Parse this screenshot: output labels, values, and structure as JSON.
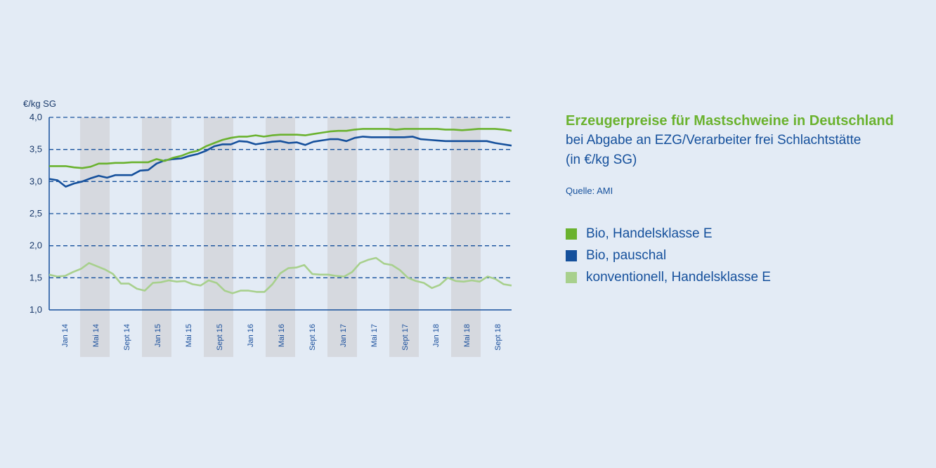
{
  "chart_data": {
    "type": "line",
    "title": "Erzeugerpreise für Mastschweine in Deutschland",
    "subtitle_line1": "bei Abgabe an EZG/Verarbeiter frei Schlachtstätte",
    "subtitle_line2": "(in €/kg SG)",
    "source": "Quelle: AMI",
    "ylabel": "€/kg SG",
    "ylim": [
      1.0,
      4.0
    ],
    "yticks": [
      "4,0",
      "3,5",
      "3,0",
      "2,5",
      "2,0",
      "1,5",
      "1,0"
    ],
    "grid": "dashed-horizontal",
    "legend_position": "right",
    "x_tick_labels": [
      "Jan 14",
      "Mai 14",
      "Sept 14",
      "Jan 15",
      "Mai 15",
      "Sept 15",
      "Jan 16",
      "Mai 16",
      "Sept 16",
      "Jan 17",
      "Mai 17",
      "Sept 17",
      "Jan 18",
      "Mai 18",
      "Sept 18"
    ],
    "x_start": "2013-12",
    "series": [
      {
        "name": "Bio, Handelsklasse E",
        "color": "#6ab22e",
        "values": [
          3.24,
          3.24,
          3.24,
          3.22,
          3.21,
          3.23,
          3.28,
          3.28,
          3.29,
          3.29,
          3.3,
          3.3,
          3.3,
          3.35,
          3.32,
          3.37,
          3.4,
          3.45,
          3.48,
          3.55,
          3.6,
          3.65,
          3.68,
          3.7,
          3.7,
          3.72,
          3.7,
          3.72,
          3.73,
          3.73,
          3.73,
          3.72,
          3.74,
          3.76,
          3.78,
          3.79,
          3.79,
          3.81,
          3.82,
          3.82,
          3.82,
          3.82,
          3.81,
          3.82,
          3.82,
          3.82,
          3.82,
          3.82,
          3.81,
          3.81,
          3.8,
          3.81,
          3.82,
          3.82,
          3.82,
          3.81,
          3.79
        ]
      },
      {
        "name": "Bio, pauschal",
        "color": "#15509c",
        "values": [
          3.04,
          3.02,
          2.92,
          2.97,
          3.0,
          3.05,
          3.09,
          3.06,
          3.1,
          3.1,
          3.1,
          3.17,
          3.18,
          3.28,
          3.33,
          3.35,
          3.36,
          3.4,
          3.43,
          3.48,
          3.55,
          3.58,
          3.58,
          3.63,
          3.62,
          3.58,
          3.6,
          3.62,
          3.63,
          3.6,
          3.61,
          3.57,
          3.62,
          3.64,
          3.66,
          3.66,
          3.63,
          3.68,
          3.7,
          3.69,
          3.69,
          3.69,
          3.69,
          3.69,
          3.7,
          3.66,
          3.65,
          3.64,
          3.63,
          3.63,
          3.63,
          3.63,
          3.63,
          3.63,
          3.6,
          3.58,
          3.56
        ]
      },
      {
        "name": "konventionell, Handelsklasse E",
        "color": "#a8d08d",
        "values": [
          1.55,
          1.52,
          1.53,
          1.59,
          1.64,
          1.73,
          1.68,
          1.63,
          1.56,
          1.41,
          1.41,
          1.33,
          1.3,
          1.42,
          1.43,
          1.46,
          1.44,
          1.45,
          1.4,
          1.38,
          1.46,
          1.42,
          1.3,
          1.26,
          1.3,
          1.3,
          1.28,
          1.28,
          1.4,
          1.57,
          1.65,
          1.66,
          1.7,
          1.56,
          1.55,
          1.55,
          1.53,
          1.52,
          1.59,
          1.73,
          1.78,
          1.81,
          1.72,
          1.7,
          1.62,
          1.5,
          1.45,
          1.42,
          1.34,
          1.39,
          1.5,
          1.45,
          1.44,
          1.46,
          1.44,
          1.52,
          1.48,
          1.4,
          1.38
        ]
      }
    ]
  }
}
